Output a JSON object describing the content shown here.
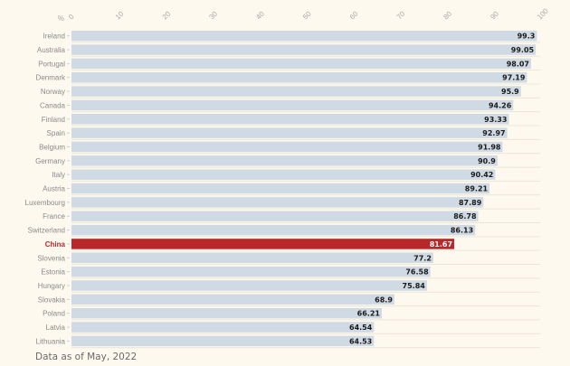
{
  "chart_data": {
    "type": "bar",
    "orientation": "horizontal",
    "title": "",
    "xlabel": "%",
    "ylabel": "",
    "xlim": [
      0,
      100
    ],
    "x_ticks": [
      "0",
      "10",
      "20",
      "30",
      "40",
      "50",
      "60",
      "70",
      "80",
      "90",
      "100"
    ],
    "grid": true,
    "categories": [
      "Ireland",
      "Australia",
      "Portugal",
      "Denmark",
      "Norway",
      "Canada",
      "Finland",
      "Spain",
      "Belgium",
      "Germany",
      "Italy",
      "Austria",
      "Luxembourg",
      "France",
      "Switzerland",
      "China",
      "Slovenia",
      "Estonia",
      "Hungary",
      "Slovakia",
      "Poland",
      "Latvia",
      "Lithuania"
    ],
    "values": [
      99.3,
      99.05,
      98.07,
      97.19,
      95.9,
      94.26,
      93.33,
      92.97,
      91.98,
      90.9,
      90.42,
      89.21,
      87.89,
      86.78,
      86.13,
      81.67,
      77.2,
      76.58,
      75.84,
      68.9,
      66.21,
      64.54,
      64.53
    ],
    "value_labels": [
      "99.3",
      "99.05",
      "98.07",
      "97.19",
      "95.9",
      "94.26",
      "93.33",
      "92.97",
      "91.98",
      "90.9",
      "90.42",
      "89.21",
      "87.89",
      "86.78",
      "86.13",
      "81.67",
      "77.2",
      "76.58",
      "75.84",
      "68.9",
      "66.21",
      "64.54",
      "64.53"
    ],
    "highlight": "China",
    "colors": {
      "bar": "#d0dae4",
      "highlight": "#b8282a",
      "label": "#8a8a8a",
      "highlight_label": "#b8282a",
      "value_text": "#1a1a1a",
      "highlight_value_text": "#ffffff",
      "grid": "#ebe6d6",
      "background": "#fdf9ef"
    }
  },
  "footnote": "Data as of May, 2022"
}
